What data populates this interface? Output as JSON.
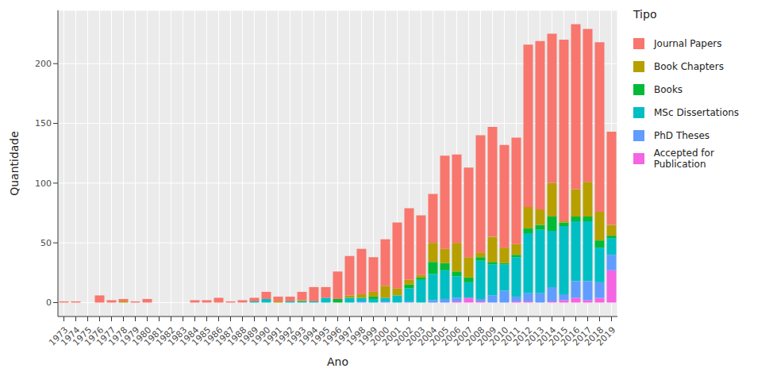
{
  "chart_data": {
    "type": "bar",
    "stacked": true,
    "grid": true,
    "legend": "right",
    "x_label": "Ano",
    "y_label": "Quantidade",
    "legend_title": "Tipo",
    "categories": [
      "1973",
      "1974",
      "1975",
      "1976",
      "1977",
      "1978",
      "1979",
      "1980",
      "1981",
      "1982",
      "1983",
      "1984",
      "1985",
      "1986",
      "1987",
      "1988",
      "1989",
      "1990",
      "1991",
      "1992",
      "1993",
      "1994",
      "1995",
      "1996",
      "1997",
      "1998",
      "1999",
      "2000",
      "2001",
      "2002",
      "2003",
      "2004",
      "2005",
      "2006",
      "2007",
      "2008",
      "2009",
      "2010",
      "2011",
      "2012",
      "2013",
      "2014",
      "2015",
      "2016",
      "2017",
      "2018",
      "2019"
    ],
    "ylim": [
      -11.65,
      244.65
    ],
    "yticks": [
      0,
      50,
      100,
      150,
      200
    ],
    "series": [
      {
        "name": "Journal Papers",
        "color": "#F8766D",
        "values": [
          1,
          1,
          0,
          6,
          2,
          2,
          1,
          3,
          0,
          0,
          0,
          2,
          2,
          4,
          1,
          2,
          3,
          6,
          4,
          4,
          7,
          12,
          9,
          23,
          33,
          38,
          29,
          39,
          55,
          60,
          50,
          41,
          78,
          74,
          75,
          98,
          92,
          86,
          89,
          136,
          141,
          125,
          152,
          138,
          128,
          142,
          78
        ]
      },
      {
        "name": "Book Chapters",
        "color": "#B79F00",
        "values": [
          0,
          0,
          0,
          0,
          0,
          1,
          0,
          0,
          0,
          0,
          0,
          0,
          0,
          0,
          0,
          0,
          0,
          0,
          1,
          0,
          1,
          0,
          0,
          0,
          2,
          3,
          4,
          10,
          6,
          4,
          2,
          16,
          12,
          24,
          17,
          4,
          21,
          13,
          9,
          18,
          13,
          28,
          1,
          23,
          29,
          24,
          9
        ]
      },
      {
        "name": "Books",
        "color": "#00BA38",
        "values": [
          0,
          0,
          0,
          0,
          0,
          0,
          0,
          0,
          0,
          0,
          0,
          0,
          0,
          0,
          0,
          0,
          0,
          0,
          0,
          0,
          0,
          0,
          0,
          3,
          0,
          0,
          2,
          0,
          0,
          3,
          2,
          10,
          6,
          4,
          4,
          3,
          2,
          1,
          2,
          4,
          4,
          12,
          3,
          4,
          4,
          6,
          2
        ]
      },
      {
        "name": "MSc Dissertations",
        "color": "#00BFC4",
        "values": [
          0,
          0,
          0,
          0,
          0,
          0,
          0,
          0,
          0,
          0,
          0,
          0,
          0,
          0,
          0,
          0,
          1,
          3,
          0,
          1,
          1,
          1,
          4,
          0,
          4,
          3,
          3,
          3,
          6,
          11,
          19,
          22,
          24,
          18,
          13,
          32,
          26,
          22,
          33,
          50,
          53,
          47,
          57,
          50,
          50,
          29,
          14
        ]
      },
      {
        "name": "PhD Theses",
        "color": "#619CFF",
        "values": [
          0,
          0,
          0,
          0,
          0,
          0,
          0,
          0,
          0,
          0,
          0,
          0,
          0,
          0,
          0,
          0,
          0,
          0,
          0,
          0,
          0,
          0,
          0,
          0,
          0,
          1,
          0,
          1,
          0,
          1,
          0,
          2,
          3,
          3,
          0,
          2,
          6,
          10,
          4,
          7,
          8,
          12,
          5,
          14,
          16,
          13,
          13
        ]
      },
      {
        "name": "Accepted for Publication",
        "color": "#F564E3",
        "values": [
          0,
          0,
          0,
          0,
          0,
          0,
          0,
          0,
          0,
          0,
          0,
          0,
          0,
          0,
          0,
          0,
          0,
          0,
          0,
          0,
          0,
          0,
          0,
          0,
          0,
          0,
          0,
          0,
          0,
          0,
          0,
          0,
          0,
          1,
          4,
          1,
          0,
          0,
          1,
          1,
          0,
          1,
          2,
          4,
          2,
          4,
          27
        ]
      }
    ]
  }
}
